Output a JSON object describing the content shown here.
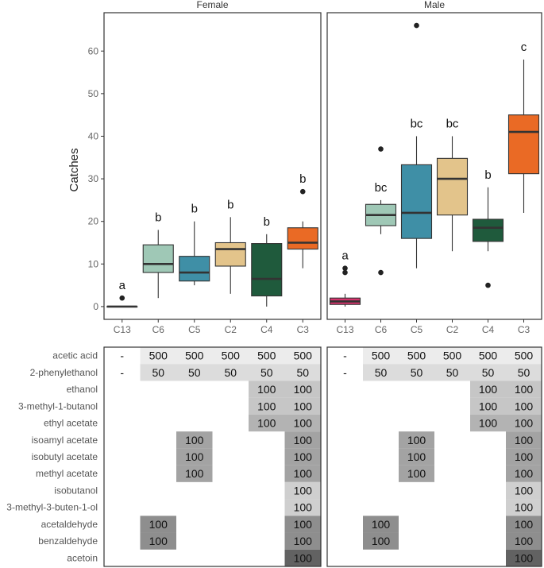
{
  "chart_data": [
    {
      "type": "box",
      "panel": "Female",
      "ylabel": "Catches",
      "ylim": [
        -3,
        69
      ],
      "yticks": [
        0,
        10,
        20,
        30,
        40,
        50,
        60
      ],
      "categories": [
        "C13",
        "C6",
        "C5",
        "C2",
        "C4",
        "C3"
      ],
      "colors": [
        "#d6336c",
        "#9fc8b6",
        "#3f8fa6",
        "#e3c48b",
        "#1f5a3c",
        "#ea6a25"
      ],
      "boxes": [
        {
          "category": "C13",
          "min": 0,
          "q1": 0,
          "median": 0,
          "q3": 0,
          "max": 0,
          "outliers": [
            2
          ],
          "letter": "a"
        },
        {
          "category": "C6",
          "min": 2,
          "q1": 8,
          "median": 10,
          "q3": 14.5,
          "max": 18,
          "outliers": [],
          "letter": "b"
        },
        {
          "category": "C5",
          "min": 5,
          "q1": 6,
          "median": 8,
          "q3": 11.8,
          "max": 20,
          "outliers": [],
          "letter": "b"
        },
        {
          "category": "C2",
          "min": 3,
          "q1": 9.5,
          "median": 13.5,
          "q3": 15,
          "max": 21,
          "outliers": [],
          "letter": "b"
        },
        {
          "category": "C4",
          "min": 0,
          "q1": 2.5,
          "median": 6.5,
          "q3": 14.8,
          "max": 17,
          "outliers": [],
          "letter": "b"
        },
        {
          "category": "C3",
          "min": 9,
          "q1": 13.5,
          "median": 15,
          "q3": 18.5,
          "max": 20,
          "outliers": [
            27
          ],
          "letter": "b"
        }
      ]
    },
    {
      "type": "box",
      "panel": "Male",
      "ylabel": "Catches",
      "ylim": [
        -3,
        69
      ],
      "yticks": [
        0,
        10,
        20,
        30,
        40,
        50,
        60
      ],
      "categories": [
        "C13",
        "C6",
        "C5",
        "C2",
        "C4",
        "C3"
      ],
      "colors": [
        "#d6336c",
        "#9fc8b6",
        "#3f8fa6",
        "#e3c48b",
        "#1f5a3c",
        "#ea6a25"
      ],
      "boxes": [
        {
          "category": "C13",
          "min": 0,
          "q1": 0.5,
          "median": 1.2,
          "q3": 2,
          "max": 3,
          "outliers": [
            8,
            9
          ],
          "letter": "a"
        },
        {
          "category": "C6",
          "min": 17,
          "q1": 19,
          "median": 21.5,
          "q3": 24,
          "max": 25,
          "outliers": [
            8,
            37
          ],
          "letter": "bc"
        },
        {
          "category": "C5",
          "min": 9,
          "q1": 16,
          "median": 22,
          "q3": 33.3,
          "max": 40,
          "outliers": [
            66
          ],
          "letter": "bc"
        },
        {
          "category": "C2",
          "min": 13,
          "q1": 21.5,
          "median": 30,
          "q3": 34.8,
          "max": 40,
          "outliers": [],
          "letter": "bc"
        },
        {
          "category": "C4",
          "min": 13,
          "q1": 15.3,
          "median": 18.5,
          "q3": 20.5,
          "max": 28,
          "outliers": [
            5
          ],
          "letter": "b"
        },
        {
          "category": "C3",
          "min": 22,
          "q1": 31.2,
          "median": 41,
          "q3": 45,
          "max": 58,
          "outliers": [],
          "letter": "c"
        }
      ]
    },
    {
      "type": "table",
      "rows": [
        {
          "label": "acetic acid",
          "cells": [
            "-",
            "500",
            "500",
            "500",
            "500",
            "500"
          ],
          "shade": [
            "none",
            "#ececec",
            "#ececec",
            "#ececec",
            "#ececec",
            "#ececec"
          ]
        },
        {
          "label": "2-phenylethanol",
          "cells": [
            "-",
            "50",
            "50",
            "50",
            "50",
            "50"
          ],
          "shade": [
            "none",
            "#dcdcdc",
            "#dcdcdc",
            "#dcdcdc",
            "#dcdcdc",
            "#dcdcdc"
          ]
        },
        {
          "label": "ethanol",
          "cells": [
            "",
            "",
            "",
            "",
            "100",
            "100"
          ],
          "shade": [
            "none",
            "none",
            "none",
            "none",
            "#c6c6c6",
            "#c6c6c6"
          ]
        },
        {
          "label": "3-methyl-1-butanol",
          "cells": [
            "",
            "",
            "",
            "",
            "100",
            "100"
          ],
          "shade": [
            "none",
            "none",
            "none",
            "none",
            "#c6c6c6",
            "#c6c6c6"
          ]
        },
        {
          "label": "ethyl acetate",
          "cells": [
            "",
            "",
            "",
            "",
            "100",
            "100"
          ],
          "shade": [
            "none",
            "none",
            "none",
            "none",
            "#b3b3b3",
            "#b3b3b3"
          ]
        },
        {
          "label": "isoamyl acetate",
          "cells": [
            "",
            "",
            "100",
            "",
            "",
            "100"
          ],
          "shade": [
            "none",
            "none",
            "#a3a3a3",
            "none",
            "none",
            "#a3a3a3"
          ]
        },
        {
          "label": "isobutyl acetate",
          "cells": [
            "",
            "",
            "100",
            "",
            "",
            "100"
          ],
          "shade": [
            "none",
            "none",
            "#a3a3a3",
            "none",
            "none",
            "#a3a3a3"
          ]
        },
        {
          "label": "methyl acetate",
          "cells": [
            "",
            "",
            "100",
            "",
            "",
            "100"
          ],
          "shade": [
            "none",
            "none",
            "#a3a3a3",
            "none",
            "none",
            "#a3a3a3"
          ]
        },
        {
          "label": "isobutanol",
          "cells": [
            "",
            "",
            "",
            "",
            "",
            "100"
          ],
          "shade": [
            "none",
            "none",
            "none",
            "none",
            "none",
            "#cfcfcf"
          ]
        },
        {
          "label": "3-methyl-3-buten-1-ol",
          "cells": [
            "",
            "",
            "",
            "",
            "",
            "100"
          ],
          "shade": [
            "none",
            "none",
            "none",
            "none",
            "none",
            "#cfcfcf"
          ]
        },
        {
          "label": "acetaldehyde",
          "cells": [
            "",
            "100",
            "",
            "",
            "",
            "100"
          ],
          "shade": [
            "none",
            "#8e8e8e",
            "none",
            "none",
            "none",
            "#8e8e8e"
          ]
        },
        {
          "label": "benzaldehyde",
          "cells": [
            "",
            "100",
            "",
            "",
            "",
            "100"
          ],
          "shade": [
            "none",
            "#8e8e8e",
            "none",
            "none",
            "none",
            "#8e8e8e"
          ]
        },
        {
          "label": "acetoin",
          "cells": [
            "",
            "",
            "",
            "",
            "",
            "100"
          ],
          "shade": [
            "none",
            "none",
            "none",
            "none",
            "none",
            "#626262"
          ]
        }
      ]
    }
  ]
}
